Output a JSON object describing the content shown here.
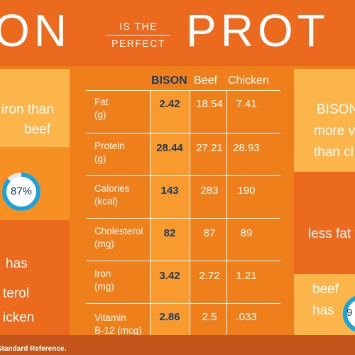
{
  "title": {
    "left_word": "ON",
    "small_line_1": "IS THE",
    "small_line_2": "PERFECT",
    "right_word": "PROT"
  },
  "left_panels": {
    "top": {
      "line_1": "iron than",
      "line_2": "beef"
    },
    "middle": {
      "gauge_label": "87%",
      "gauge_percent": 87
    },
    "bottom": {
      "line_1": "has",
      "line_2": "terol",
      "line_3": "icken"
    }
  },
  "right_panels": {
    "top": {
      "line_1": "BISON",
      "line_2": "more v",
      "line_3": "than cl"
    },
    "middle": {
      "line_1": "less fat t"
    },
    "bottom": {
      "line_1": "beef",
      "line_2": "has",
      "gauge_label": "9"
    }
  },
  "table": {
    "headers": [
      "BISON",
      "Beef",
      "Chicken"
    ],
    "rows": [
      {
        "label_1": "Fat",
        "label_2": "(g)",
        "bison": "2.42",
        "beef": "18.54",
        "chicken": "7.41"
      },
      {
        "label_1": "Protein",
        "label_2": "(g)",
        "bison": "28.44",
        "beef": "27.21",
        "chicken": "28.93"
      },
      {
        "label_1": "Calories",
        "label_2": "(kcal)",
        "bison": "143",
        "beef": "283",
        "chicken": "190"
      },
      {
        "label_1": "Cholesterol",
        "label_2": "(mg)",
        "bison": "82",
        "beef": "87",
        "chicken": "89"
      },
      {
        "label_1": "Iron",
        "label_2": "(mg)",
        "bison": "3.42",
        "beef": "2.72",
        "chicken": "1.21"
      },
      {
        "label_1": "Vitamin",
        "label_2": "B-12 (mcg)",
        "bison": "2.86",
        "beef": "2.5",
        "chicken": ".033"
      }
    ]
  },
  "footnote": "Standard Reference.",
  "colors": {
    "accent_blue": "#1c3d63",
    "gauge_blue": "#1aa3d9",
    "orange_dark": "#ec6a1e",
    "orange_light": "#fbb54a"
  }
}
